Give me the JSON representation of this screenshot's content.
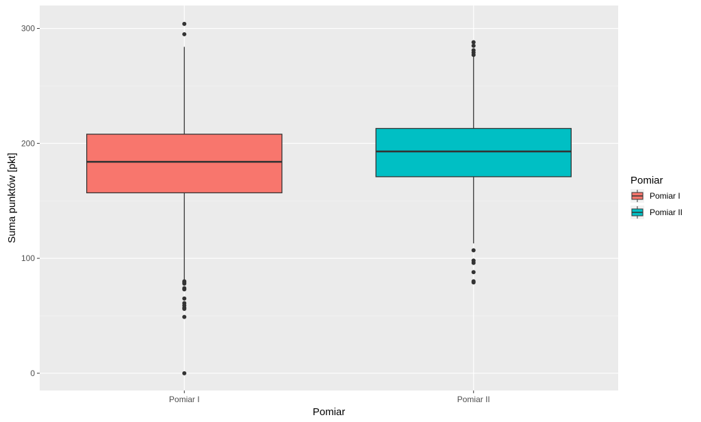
{
  "chart_data": {
    "type": "boxplot",
    "title": "",
    "xlabel": "Pomiar",
    "ylabel": "Suma punktów [pkt]",
    "ylim": [
      -15,
      320
    ],
    "yticks": [
      0,
      100,
      200,
      300
    ],
    "grid": true,
    "legend": {
      "title": "Pomiar",
      "position": "right",
      "entries": [
        "Pomiar I",
        "Pomiar II"
      ]
    },
    "categories": [
      "Pomiar I",
      "Pomiar II"
    ],
    "series": [
      {
        "name": "Pomiar I",
        "color": "#F8766D",
        "q1": 157,
        "median": 184,
        "q3": 208,
        "whisker_low": 81,
        "whisker_high": 284,
        "outliers": [
          304,
          295,
          80,
          79,
          78,
          74,
          73,
          65,
          61,
          59,
          57,
          56,
          49,
          0
        ]
      },
      {
        "name": "Pomiar II",
        "color": "#00BFC4",
        "q1": 171,
        "median": 193,
        "q3": 213,
        "whisker_low": 113,
        "whisker_high": 276,
        "outliers": [
          288,
          285,
          281,
          279,
          277,
          107,
          98,
          96,
          88,
          80,
          79
        ]
      }
    ]
  }
}
